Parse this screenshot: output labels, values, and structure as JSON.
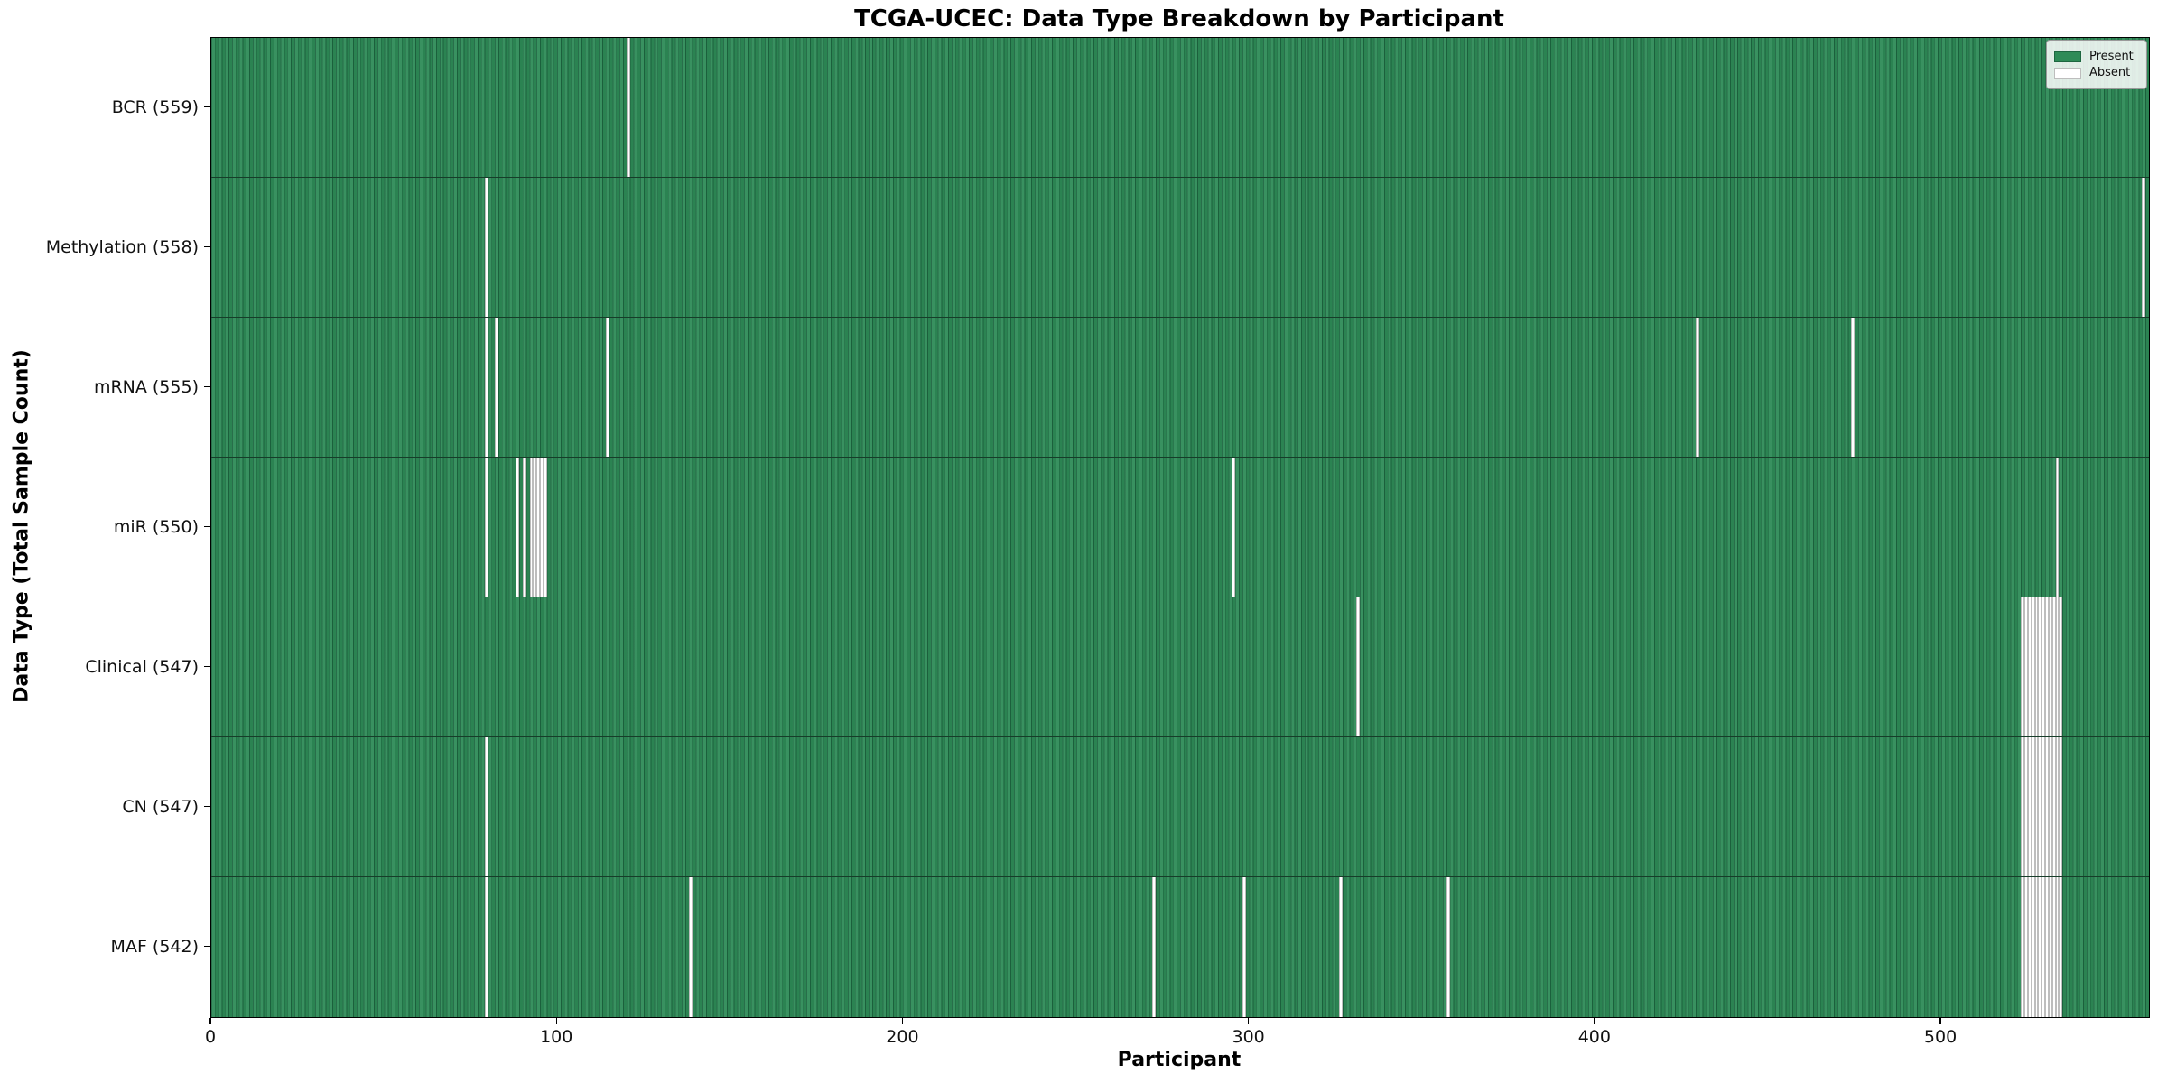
{
  "title": "TCGA-UCEC: Data Type Breakdown by Participant",
  "axes": {
    "x_label": "Participant",
    "y_label": "Data Type (Total Sample Count)"
  },
  "legend": {
    "present_label": "Present",
    "absent_label": "Absent"
  },
  "colors": {
    "present": "#2e8b57",
    "present_edge": "#1d6640",
    "absent": "#ffffff",
    "absent_edge": "#bdbdbd"
  },
  "chart_data": {
    "type": "heatmap",
    "title": "TCGA-UCEC: Data Type Breakdown by Participant",
    "xlabel": "Participant",
    "ylabel": "Data Type (Total Sample Count)",
    "legend_entries": [
      "Present",
      "Absent"
    ],
    "legend_position": "upper right",
    "grid": false,
    "n_participants": 560,
    "xlim": [
      0,
      560
    ],
    "x_ticks": [
      0,
      100,
      200,
      300,
      400,
      500
    ],
    "rows": [
      {
        "label": "BCR (559)",
        "present_count": 559,
        "absent_participants": [
          120
        ]
      },
      {
        "label": "Methylation (558)",
        "present_count": 558,
        "absent_participants": [
          79,
          558
        ]
      },
      {
        "label": "mRNA (555)",
        "present_count": 555,
        "absent_participants": [
          79,
          82,
          114,
          429,
          474
        ]
      },
      {
        "label": "miR (550)",
        "present_count": 550,
        "absent_participants": [
          79,
          88,
          90,
          92,
          93,
          94,
          95,
          96,
          295,
          533
        ]
      },
      {
        "label": "Clinical (547)",
        "present_count": 547,
        "absent_participants": [
          331,
          523,
          524,
          525,
          526,
          527,
          528,
          529,
          530,
          531,
          532,
          533,
          534
        ]
      },
      {
        "label": "CN (547)",
        "present_count": 547,
        "absent_participants": [
          79,
          523,
          524,
          525,
          526,
          527,
          528,
          529,
          530,
          531,
          532,
          533,
          534
        ]
      },
      {
        "label": "MAF (542)",
        "present_count": 542,
        "absent_participants": [
          79,
          138,
          272,
          298,
          326,
          357,
          523,
          524,
          525,
          526,
          527,
          528,
          529,
          530,
          531,
          532,
          533,
          534
        ]
      }
    ]
  }
}
